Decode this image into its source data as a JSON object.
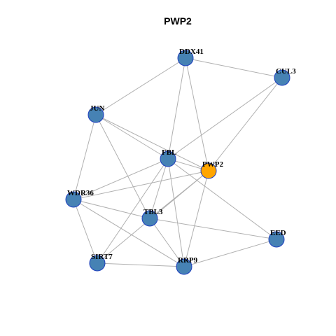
{
  "title": "PWP2",
  "nodes": [
    {
      "label": "DDX41",
      "color": "#4682b4"
    },
    {
      "label": "CUL3",
      "color": "#4682b4"
    },
    {
      "label": "JUN",
      "color": "#4682b4"
    },
    {
      "label": "FBL",
      "color": "#4682b4"
    },
    {
      "label": "PWP2",
      "color": "#ffa500"
    },
    {
      "label": "WDR36",
      "color": "#4682b4"
    },
    {
      "label": "TBL3",
      "color": "#4682b4"
    },
    {
      "label": "EED",
      "color": "#4682b4"
    },
    {
      "label": "SIRT7",
      "color": "#4682b4"
    },
    {
      "label": "RRP9",
      "color": "#4682b4"
    }
  ]
}
